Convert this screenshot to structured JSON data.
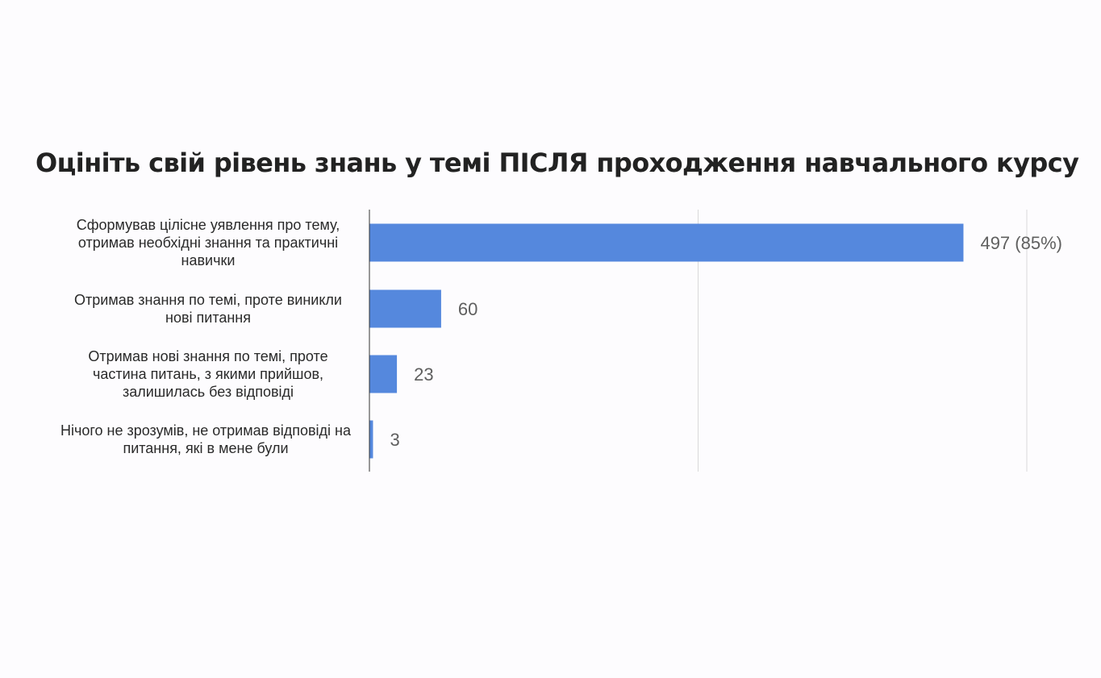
{
  "title": "Оцініть свій рівень знань у темі ПІСЛЯ проходження навчального курсу",
  "chart_data": {
    "type": "bar",
    "orientation": "horizontal",
    "title": "Оцініть свій рівень знань у темі ПІСЛЯ проходження навчального курсу",
    "categories": [
      "Сформував цілісне уявлення про тему, отримав необхідні знання та практичні навички",
      "Отримав знання по темі, проте виникли нові питання",
      "Отримав нові знання по темі, проте частина питань, з якими прийшов, залишилась без відповіді",
      "Нічого не зрозумів, не отримав відповіді на питання, які в мене були"
    ],
    "category_lines": [
      [
        "Сформував цілісне уявлення про тему,",
        "отримав необхідні знання та практичні",
        "навички"
      ],
      [
        "Отримав знання по темі, проте виникли",
        "нові питання"
      ],
      [
        "Отримав нові знання по темі, проте",
        "частина питань, з якими прийшов,",
        "залишилась без відповіді"
      ],
      [
        "Нічого не зрозумів, не отримав відповіді на",
        "питання, які в мене були"
      ]
    ],
    "values": [
      497,
      60,
      23,
      3
    ],
    "data_labels": [
      "497 (85%)",
      "60",
      "23",
      "3"
    ],
    "xlim": [
      0,
      550
    ],
    "gridlines_x": [
      275,
      550
    ],
    "grid": true,
    "legend": "none",
    "bar_color": "#5588dd",
    "axis_color": "#333333",
    "grid_color": "#d9d9d9"
  }
}
